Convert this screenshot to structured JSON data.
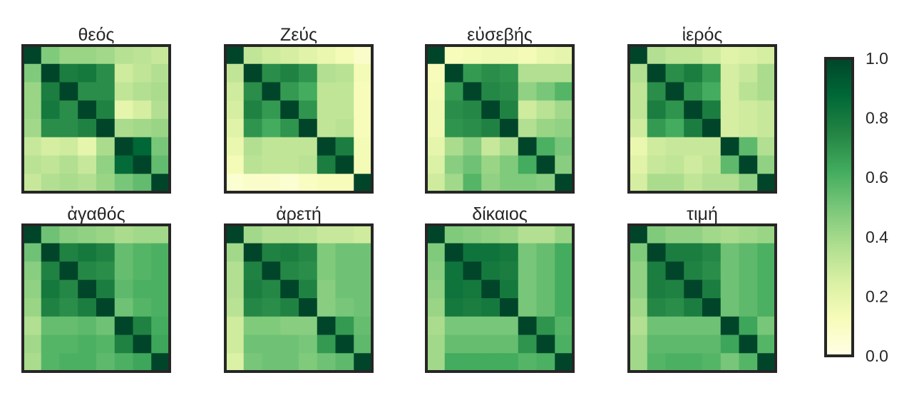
{
  "chart_data": {
    "type": "heatmap",
    "colormap": "YlGn",
    "colors": {
      "low": "#ffffe5",
      "mid": "#78c679",
      "high": "#004529",
      "frame": "#262626"
    },
    "colorbar": {
      "range": [
        0.0,
        1.0
      ],
      "tick_labels": [
        "0.0",
        "0.2",
        "0.4",
        "0.6",
        "0.8",
        "1.0"
      ],
      "tick_values": [
        0.0,
        0.2,
        0.4,
        0.6,
        0.8,
        1.0
      ],
      "placement": "right"
    },
    "grid": false,
    "matrix_size": 8,
    "panels": [
      {
        "title": "θεός",
        "values": [
          [
            1.0,
            0.48,
            0.42,
            0.42,
            0.4,
            0.35,
            0.33,
            0.3
          ],
          [
            0.48,
            1.0,
            0.78,
            0.8,
            0.72,
            0.28,
            0.32,
            0.36
          ],
          [
            0.42,
            0.78,
            1.0,
            0.72,
            0.72,
            0.32,
            0.36,
            0.38
          ],
          [
            0.42,
            0.8,
            0.72,
            1.0,
            0.76,
            0.2,
            0.26,
            0.36
          ],
          [
            0.4,
            0.72,
            0.72,
            0.76,
            1.0,
            0.38,
            0.4,
            0.42
          ],
          [
            0.3,
            0.26,
            0.28,
            0.2,
            0.38,
            1.0,
            0.88,
            0.5
          ],
          [
            0.34,
            0.32,
            0.36,
            0.3,
            0.44,
            0.86,
            1.0,
            0.55
          ],
          [
            0.3,
            0.36,
            0.38,
            0.36,
            0.42,
            0.5,
            0.55,
            1.0
          ]
        ]
      },
      {
        "title": "Ζεύς",
        "values": [
          [
            1.0,
            0.32,
            0.28,
            0.26,
            0.22,
            0.18,
            0.14,
            0.08
          ],
          [
            0.32,
            1.0,
            0.72,
            0.76,
            0.7,
            0.36,
            0.34,
            0.14
          ],
          [
            0.28,
            0.72,
            1.0,
            0.68,
            0.62,
            0.32,
            0.32,
            0.12
          ],
          [
            0.26,
            0.76,
            0.68,
            1.0,
            0.7,
            0.32,
            0.32,
            0.12
          ],
          [
            0.22,
            0.7,
            0.62,
            0.7,
            1.0,
            0.32,
            0.34,
            0.12
          ],
          [
            0.18,
            0.36,
            0.32,
            0.32,
            0.32,
            1.0,
            0.78,
            0.14
          ],
          [
            0.14,
            0.34,
            0.32,
            0.32,
            0.34,
            0.78,
            1.0,
            0.14
          ],
          [
            0.06,
            0.08,
            0.08,
            0.06,
            0.1,
            0.12,
            0.12,
            1.0
          ]
        ]
      },
      {
        "title": "εὐσεβής",
        "values": [
          [
            1.0,
            0.12,
            0.14,
            0.16,
            0.16,
            0.14,
            0.18,
            0.2
          ],
          [
            0.12,
            1.0,
            0.68,
            0.72,
            0.7,
            0.36,
            0.36,
            0.36
          ],
          [
            0.14,
            0.68,
            1.0,
            0.74,
            0.72,
            0.44,
            0.5,
            0.58
          ],
          [
            0.16,
            0.72,
            0.74,
            1.0,
            0.76,
            0.28,
            0.34,
            0.4
          ],
          [
            0.16,
            0.7,
            0.72,
            0.76,
            1.0,
            0.36,
            0.42,
            0.44
          ],
          [
            0.2,
            0.38,
            0.46,
            0.3,
            0.38,
            1.0,
            0.6,
            0.5
          ],
          [
            0.24,
            0.46,
            0.52,
            0.42,
            0.48,
            0.62,
            1.0,
            0.46
          ],
          [
            0.28,
            0.4,
            0.58,
            0.44,
            0.48,
            0.48,
            0.46,
            1.0
          ]
        ]
      },
      {
        "title": "ἱερός",
        "values": [
          [
            1.0,
            0.36,
            0.32,
            0.32,
            0.28,
            0.22,
            0.24,
            0.26
          ],
          [
            0.36,
            1.0,
            0.72,
            0.78,
            0.68,
            0.26,
            0.3,
            0.38
          ],
          [
            0.32,
            0.72,
            1.0,
            0.7,
            0.62,
            0.26,
            0.34,
            0.38
          ],
          [
            0.32,
            0.78,
            0.7,
            1.0,
            0.78,
            0.26,
            0.28,
            0.3
          ],
          [
            0.28,
            0.68,
            0.62,
            0.78,
            1.0,
            0.26,
            0.28,
            0.3
          ],
          [
            0.18,
            0.28,
            0.3,
            0.3,
            0.3,
            1.0,
            0.56,
            0.36
          ],
          [
            0.22,
            0.3,
            0.32,
            0.28,
            0.32,
            0.56,
            1.0,
            0.44
          ],
          [
            0.26,
            0.38,
            0.38,
            0.32,
            0.36,
            0.36,
            0.44,
            1.0
          ]
        ]
      },
      {
        "title": "ἀγαθός",
        "values": [
          [
            1.0,
            0.52,
            0.46,
            0.44,
            0.42,
            0.38,
            0.4,
            0.4
          ],
          [
            0.52,
            1.0,
            0.76,
            0.8,
            0.76,
            0.54,
            0.58,
            0.6
          ],
          [
            0.46,
            0.76,
            1.0,
            0.74,
            0.72,
            0.54,
            0.58,
            0.6
          ],
          [
            0.44,
            0.8,
            0.74,
            1.0,
            0.78,
            0.56,
            0.6,
            0.6
          ],
          [
            0.42,
            0.76,
            0.72,
            0.78,
            1.0,
            0.52,
            0.58,
            0.6
          ],
          [
            0.36,
            0.54,
            0.54,
            0.56,
            0.52,
            1.0,
            0.76,
            0.62
          ],
          [
            0.4,
            0.58,
            0.58,
            0.6,
            0.58,
            0.76,
            1.0,
            0.64
          ],
          [
            0.38,
            0.58,
            0.6,
            0.6,
            0.56,
            0.6,
            0.64,
            1.0
          ]
        ]
      },
      {
        "title": "ἀρετή",
        "values": [
          [
            1.0,
            0.4,
            0.36,
            0.36,
            0.34,
            0.3,
            0.3,
            0.28
          ],
          [
            0.4,
            1.0,
            0.76,
            0.78,
            0.74,
            0.48,
            0.52,
            0.52
          ],
          [
            0.36,
            0.76,
            1.0,
            0.74,
            0.72,
            0.48,
            0.52,
            0.52
          ],
          [
            0.36,
            0.78,
            0.74,
            1.0,
            0.76,
            0.46,
            0.52,
            0.52
          ],
          [
            0.34,
            0.74,
            0.72,
            0.76,
            1.0,
            0.46,
            0.5,
            0.52
          ],
          [
            0.28,
            0.48,
            0.48,
            0.46,
            0.46,
            1.0,
            0.68,
            0.54
          ],
          [
            0.28,
            0.52,
            0.52,
            0.52,
            0.5,
            0.68,
            1.0,
            0.56
          ],
          [
            0.24,
            0.5,
            0.52,
            0.52,
            0.48,
            0.52,
            0.56,
            1.0
          ]
        ]
      },
      {
        "title": "δίκαιος",
        "values": [
          [
            1.0,
            0.48,
            0.46,
            0.44,
            0.42,
            0.36,
            0.36,
            0.42
          ],
          [
            0.48,
            1.0,
            0.82,
            0.82,
            0.8,
            0.5,
            0.54,
            0.62
          ],
          [
            0.46,
            0.82,
            1.0,
            0.8,
            0.78,
            0.5,
            0.54,
            0.62
          ],
          [
            0.44,
            0.82,
            0.8,
            1.0,
            0.8,
            0.5,
            0.54,
            0.62
          ],
          [
            0.42,
            0.8,
            0.78,
            0.8,
            1.0,
            0.5,
            0.54,
            0.62
          ],
          [
            0.38,
            0.5,
            0.5,
            0.5,
            0.5,
            1.0,
            0.7,
            0.58
          ],
          [
            0.4,
            0.54,
            0.54,
            0.54,
            0.54,
            0.7,
            1.0,
            0.6
          ],
          [
            0.4,
            0.62,
            0.62,
            0.62,
            0.62,
            0.58,
            0.6,
            1.0
          ]
        ]
      },
      {
        "title": "τιμή",
        "values": [
          [
            1.0,
            0.48,
            0.44,
            0.44,
            0.4,
            0.38,
            0.4,
            0.42
          ],
          [
            0.48,
            1.0,
            0.78,
            0.78,
            0.74,
            0.52,
            0.56,
            0.6
          ],
          [
            0.44,
            0.78,
            1.0,
            0.76,
            0.72,
            0.52,
            0.56,
            0.6
          ],
          [
            0.44,
            0.78,
            0.76,
            1.0,
            0.78,
            0.52,
            0.56,
            0.6
          ],
          [
            0.4,
            0.74,
            0.72,
            0.78,
            1.0,
            0.52,
            0.56,
            0.6
          ],
          [
            0.36,
            0.52,
            0.52,
            0.52,
            0.52,
            1.0,
            0.64,
            0.5
          ],
          [
            0.4,
            0.56,
            0.56,
            0.56,
            0.56,
            0.64,
            1.0,
            0.58
          ],
          [
            0.4,
            0.58,
            0.6,
            0.6,
            0.58,
            0.5,
            0.58,
            1.0
          ]
        ]
      }
    ]
  }
}
